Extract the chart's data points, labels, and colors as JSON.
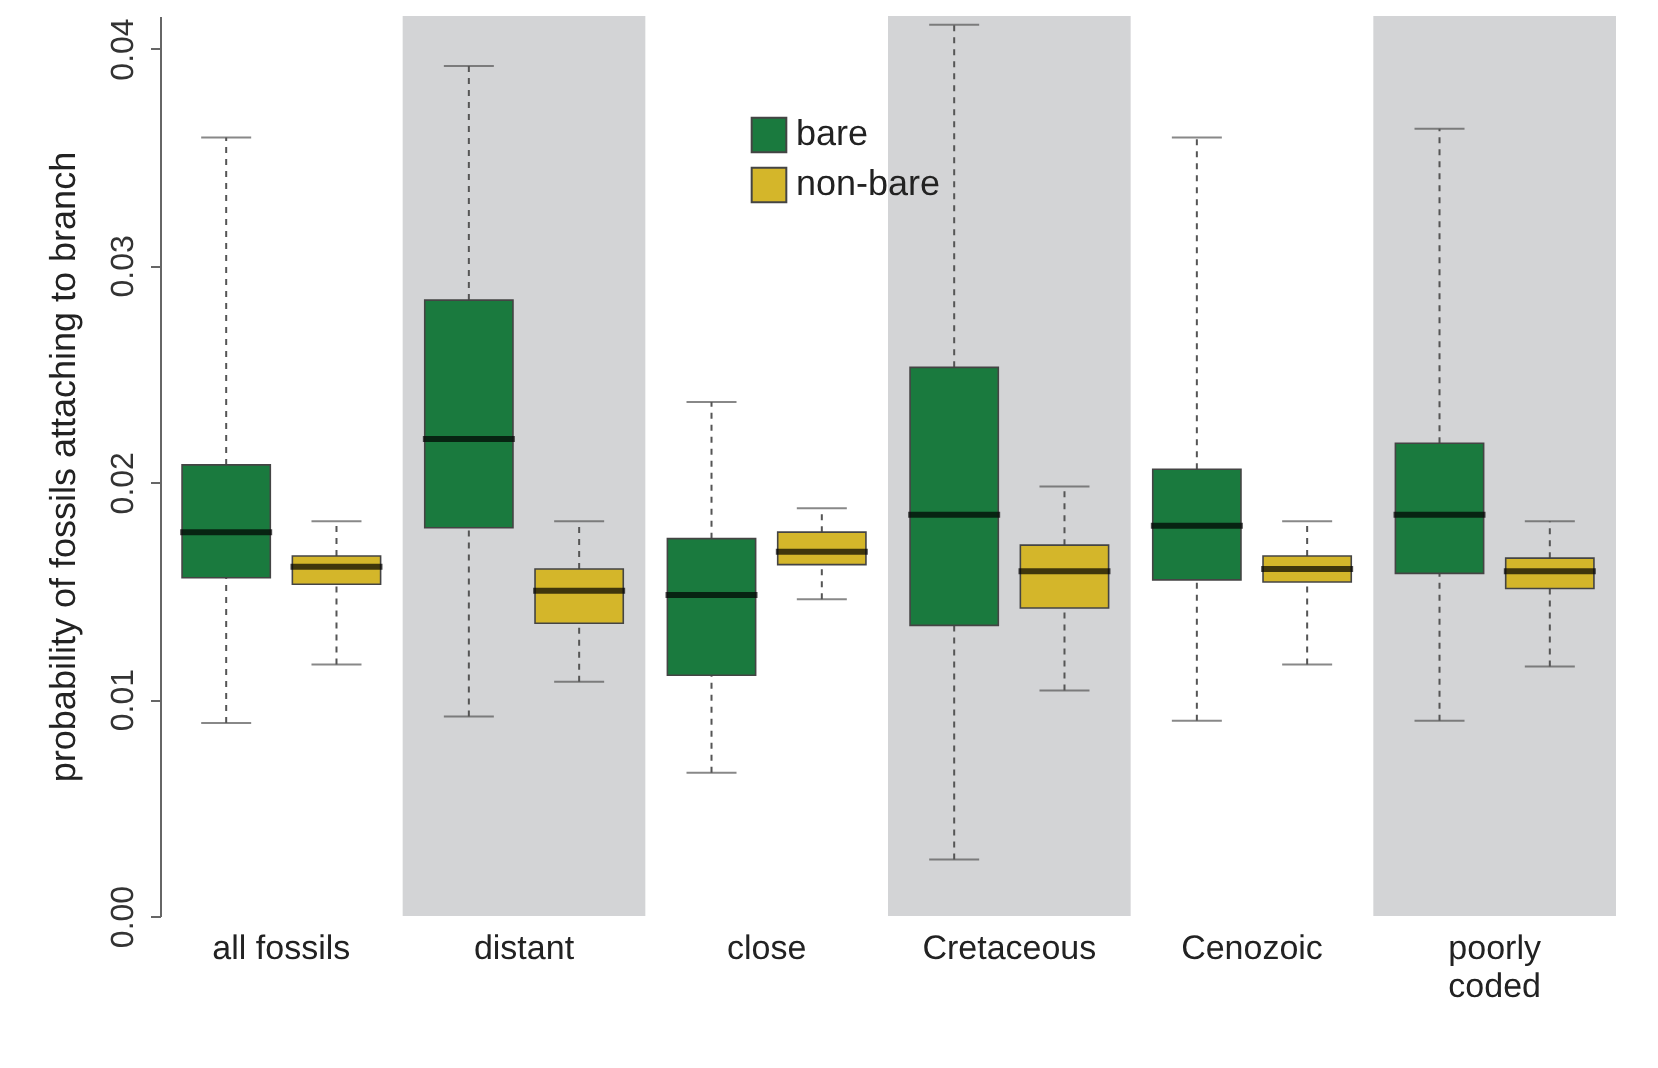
{
  "chart_data": {
    "type": "box",
    "ylabel": "probability of fossils attaching to branch",
    "categories": [
      "all fossils",
      "distant",
      "close",
      "Cretaceous",
      "Cenozoic",
      "poorly coded"
    ],
    "ylim": [
      0,
      0.0415
    ],
    "yticks": [
      {
        "value": 0,
        "label": "0.00"
      },
      {
        "value": 0.01,
        "label": "0.01"
      },
      {
        "value": 0.02,
        "label": "0.02"
      },
      {
        "value": 0.03,
        "label": "0.03"
      },
      {
        "value": 0.04,
        "label": "0.04"
      }
    ],
    "grid": false,
    "legend": "top",
    "bands": [
      {
        "axis": "x",
        "from": "distant",
        "to": "distant",
        "color": "#d3d4d6"
      },
      {
        "axis": "x",
        "from": "Cretaceous",
        "to": "Cretaceous",
        "color": "#d3d4d6"
      },
      {
        "axis": "x",
        "from": "poorly coded",
        "to": "poorly coded",
        "color": "#d3d4d6"
      }
    ],
    "series": [
      {
        "name": "bare",
        "color": "#1a7a3e",
        "boxes": [
          {
            "low": 0.0089,
            "q1": 0.0156,
            "median": 0.0177,
            "q3": 0.0208,
            "high": 0.0359
          },
          {
            "low": 0.0092,
            "q1": 0.0179,
            "median": 0.022,
            "q3": 0.0284,
            "high": 0.0392
          },
          {
            "low": 0.0066,
            "q1": 0.0111,
            "median": 0.0148,
            "q3": 0.0174,
            "high": 0.0237
          },
          {
            "low": 0.0026,
            "q1": 0.0134,
            "median": 0.0185,
            "q3": 0.0253,
            "high": 0.0411
          },
          {
            "low": 0.009,
            "q1": 0.0155,
            "median": 0.018,
            "q3": 0.0206,
            "high": 0.0359
          },
          {
            "low": 0.009,
            "q1": 0.0158,
            "median": 0.0185,
            "q3": 0.0218,
            "high": 0.0363
          }
        ]
      },
      {
        "name": "non-bare",
        "color": "#d4b62a",
        "boxes": [
          {
            "low": 0.0116,
            "q1": 0.0153,
            "median": 0.0161,
            "q3": 0.0166,
            "high": 0.0182
          },
          {
            "low": 0.0108,
            "q1": 0.0135,
            "median": 0.015,
            "q3": 0.016,
            "high": 0.0182
          },
          {
            "low": 0.0146,
            "q1": 0.0162,
            "median": 0.0168,
            "q3": 0.0177,
            "high": 0.0188
          },
          {
            "low": 0.0104,
            "q1": 0.0142,
            "median": 0.0159,
            "q3": 0.0171,
            "high": 0.0198
          },
          {
            "low": 0.0116,
            "q1": 0.0154,
            "median": 0.016,
            "q3": 0.0166,
            "high": 0.0182
          },
          {
            "low": 0.0115,
            "q1": 0.0151,
            "median": 0.0159,
            "q3": 0.0165,
            "high": 0.0182
          }
        ]
      }
    ]
  }
}
